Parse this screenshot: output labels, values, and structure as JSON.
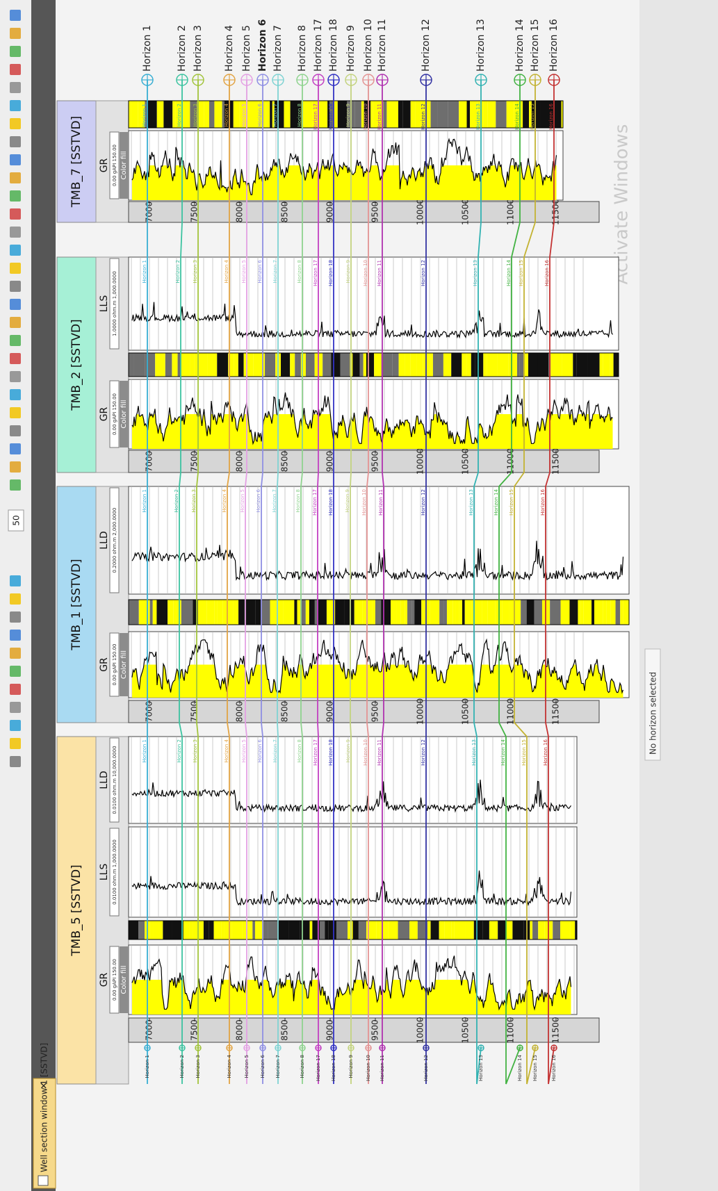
{
  "window": {
    "tab_title": "Well section window 1 [SSTVD]",
    "close": "✕"
  },
  "toolbar": {
    "zoom": "50"
  },
  "depth_ticks": [
    7000,
    7500,
    8000,
    8500,
    9000,
    9500,
    10000,
    10500,
    11000,
    11500
  ],
  "wells": [
    {
      "name": "TMB_5 [SSTVD]",
      "color": "#fbe3a6",
      "tracks": [
        {
          "name": "GR",
          "scale": "0.00 gAPI 150.00",
          "fill_label": "Color fill"
        },
        {
          "name": "LLS",
          "scale": "0.0100 ohm.m 1,000.0000"
        },
        {
          "name": "LLD",
          "scale": "0.0100 ohm.m 10,000.0000"
        }
      ]
    },
    {
      "name": "TMB_1 [SSTVD]",
      "color": "#a9daf2",
      "tracks": [
        {
          "name": "GR",
          "scale": "0.00 gAPI 150.00",
          "fill_label": "Color fill"
        },
        {
          "name": "LLD",
          "scale": "0.2000 ohm.m 2,000.0000"
        }
      ]
    },
    {
      "name": "TMB_2 [SSTVD]",
      "color": "#a6f0d6",
      "tracks": [
        {
          "name": "GR",
          "scale": "0.00 gAPI 150.00",
          "fill_label": "Color fill"
        },
        {
          "name": "LLS",
          "scale": "1.0000 ohm.m 1,000.0000"
        }
      ]
    },
    {
      "name": "TMB_7 [SSTVD]",
      "color": "#cccdf3",
      "tracks": [
        {
          "name": "GR",
          "scale": "0.00 gAPI 150.00",
          "fill_label": "Color fill"
        }
      ]
    }
  ],
  "horizons": [
    {
      "name": "Horizon 1",
      "color": "#38aed3"
    },
    {
      "name": "Horizon 2",
      "color": "#3cc3a0"
    },
    {
      "name": "Horizon 3",
      "color": "#a2c43c"
    },
    {
      "name": "Horizon 4",
      "color": "#e2a444"
    },
    {
      "name": "Horizon 5",
      "color": "#e3a0e3"
    },
    {
      "name": "Horizon 6",
      "color": "#8f8fe3"
    },
    {
      "name": "Horizon 7",
      "color": "#7fd3d3"
    },
    {
      "name": "Horizon 8",
      "color": "#8fd38f"
    },
    {
      "name": "Horizon 17",
      "color": "#c23fc2"
    },
    {
      "name": "Horizon 18",
      "color": "#3232c4"
    },
    {
      "name": "Horizon 9",
      "color": "#c3d37f"
    },
    {
      "name": "Horizon 10",
      "color": "#e39393"
    },
    {
      "name": "Horizon 11",
      "color": "#b032b0"
    },
    {
      "name": "Horizon 12",
      "color": "#3232a2"
    },
    {
      "name": "Horizon 13",
      "color": "#32b2b2"
    },
    {
      "name": "Horizon 14",
      "color": "#42b242"
    },
    {
      "name": "Horizon 15",
      "color": "#c3b232"
    },
    {
      "name": "Horizon 16",
      "color": "#c33232"
    }
  ],
  "status": "No horizon selected",
  "watermark": "Activate Windows"
}
